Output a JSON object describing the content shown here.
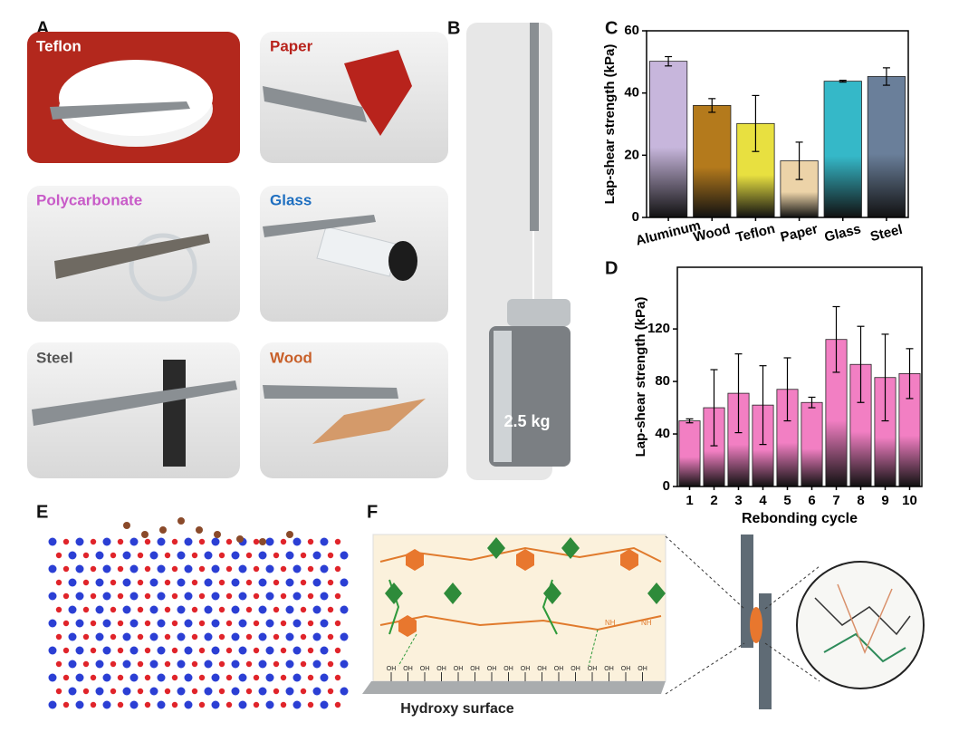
{
  "panels": {
    "a": "A",
    "b": "B",
    "c": "C",
    "d": "D",
    "e": "E",
    "f": "F"
  },
  "photos": [
    {
      "label": "Teflon"
    },
    {
      "label": "Paper"
    },
    {
      "label": "Polycarbonate"
    },
    {
      "label": "Glass"
    },
    {
      "label": "Steel"
    },
    {
      "label": "Wood"
    }
  ],
  "weight_label": "2.5 kg",
  "surface_label": "Hydroxy surface",
  "group_labels": {
    "oh": "OH",
    "nh": "NH"
  },
  "chart_data": [
    {
      "type": "bar",
      "y_label": "Lap-shear strength (kPa)",
      "categories": [
        "Aluminum",
        "Wood",
        "Teflon",
        "Paper",
        "Glass",
        "Steel"
      ],
      "values": [
        50.2,
        36,
        30.2,
        18.2,
        43.8,
        45.3
      ],
      "errors": [
        1.5,
        2.2,
        9,
        6,
        0.3,
        2.8
      ],
      "colors": [
        "#c7b6dc",
        "#b47a1c",
        "#e8e040",
        "#ecd3a8",
        "#35b8c8",
        "#6a7f9a"
      ],
      "ylim": [
        0,
        60
      ],
      "yticks": [
        0,
        20,
        40,
        60
      ]
    },
    {
      "type": "bar",
      "y_label": "Lap-shear strength (kPa)",
      "x_label": "Rebonding cycle",
      "categories": [
        "1",
        "2",
        "3",
        "4",
        "5",
        "6",
        "7",
        "8",
        "9",
        "10"
      ],
      "values": [
        50,
        60,
        71,
        62,
        74,
        64,
        112,
        93,
        83,
        86
      ],
      "errors": [
        1.5,
        29,
        30,
        30,
        24,
        4,
        25,
        29,
        33,
        19
      ],
      "color": "#f27fc3",
      "ylim": [
        0,
        167
      ],
      "yticks": [
        0,
        40,
        80,
        120
      ]
    }
  ]
}
